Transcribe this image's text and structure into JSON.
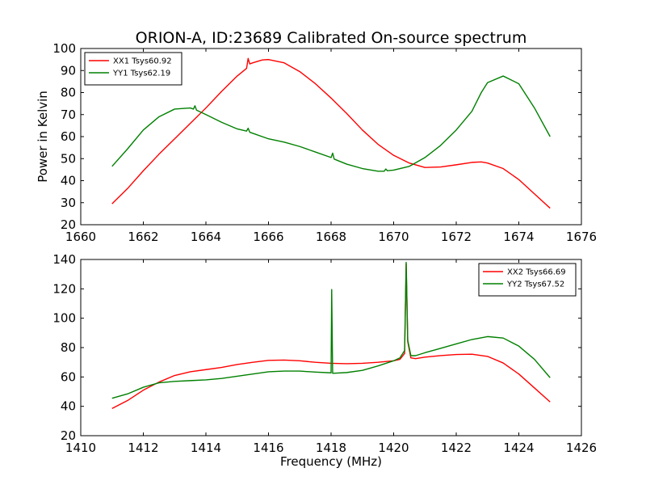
{
  "chart_data": [
    {
      "type": "line",
      "title": "ORION-A, ID:23689 Calibrated On-source spectrum",
      "xlabel": "",
      "ylabel": "Power in Kelvin",
      "xlim": [
        1660,
        1676
      ],
      "ylim": [
        20,
        100
      ],
      "xticks": [
        "1660",
        "1662",
        "1664",
        "1666",
        "1668",
        "1670",
        "1672",
        "1674",
        "1676"
      ],
      "yticks": [
        "20",
        "30",
        "40",
        "50",
        "60",
        "70",
        "80",
        "90",
        "100"
      ],
      "grid": false,
      "legend_position": "top-left",
      "series": [
        {
          "name": "XX1 Tsys60.92",
          "color": "#ff0000",
          "x": [
            1661.0,
            1661.5,
            1662.0,
            1662.5,
            1663.0,
            1663.5,
            1664.0,
            1664.5,
            1665.0,
            1665.3,
            1665.35,
            1665.4,
            1665.5,
            1665.8,
            1666.0,
            1666.5,
            1667.0,
            1667.5,
            1668.0,
            1668.5,
            1669.0,
            1669.5,
            1670.0,
            1670.5,
            1671.0,
            1671.5,
            1672.0,
            1672.5,
            1672.8,
            1673.0,
            1673.5,
            1674.0,
            1674.5,
            1675.0
          ],
          "values": [
            29.5,
            36.5,
            44.5,
            52.0,
            59.0,
            66.0,
            73.0,
            80.5,
            87.5,
            91.0,
            95.5,
            93.0,
            93.5,
            94.8,
            95.0,
            93.5,
            89.5,
            84.0,
            77.5,
            70.5,
            63.0,
            56.5,
            51.5,
            48.0,
            46.0,
            46.2,
            47.2,
            48.3,
            48.5,
            48.0,
            45.5,
            40.5,
            34.0,
            27.5
          ]
        },
        {
          "name": "YY1 Tsys62.19",
          "color": "#008000",
          "x": [
            1661.0,
            1661.5,
            1662.0,
            1662.5,
            1663.0,
            1663.5,
            1663.6,
            1663.65,
            1663.7,
            1664.0,
            1664.5,
            1665.0,
            1665.3,
            1665.35,
            1665.4,
            1665.5,
            1666.0,
            1666.5,
            1667.0,
            1667.5,
            1668.0,
            1668.05,
            1668.1,
            1668.5,
            1669.0,
            1669.5,
            1669.7,
            1669.75,
            1669.8,
            1670.0,
            1670.5,
            1671.0,
            1671.5,
            1672.0,
            1672.5,
            1672.8,
            1673.0,
            1673.5,
            1674.0,
            1674.5,
            1675.0
          ],
          "values": [
            46.5,
            54.5,
            63.0,
            69.0,
            72.5,
            73.0,
            72.5,
            74.0,
            72.0,
            70.0,
            66.5,
            63.5,
            62.5,
            63.8,
            62.0,
            61.5,
            59.0,
            57.5,
            55.5,
            53.0,
            50.5,
            52.5,
            49.8,
            47.5,
            45.5,
            44.3,
            44.3,
            45.3,
            44.5,
            44.8,
            46.5,
            50.5,
            56.0,
            63.0,
            71.5,
            80.0,
            84.5,
            87.5,
            84.0,
            73.0,
            60.0
          ]
        }
      ]
    },
    {
      "type": "line",
      "title": "",
      "xlabel": "Frequency (MHz)",
      "ylabel": "",
      "xlim": [
        1410,
        1426
      ],
      "ylim": [
        20,
        140
      ],
      "xticks": [
        "1410",
        "1412",
        "1414",
        "1416",
        "1418",
        "1420",
        "1422",
        "1424",
        "1426"
      ],
      "yticks": [
        "20",
        "40",
        "60",
        "80",
        "100",
        "120",
        "140"
      ],
      "grid": false,
      "legend_position": "top-right",
      "series": [
        {
          "name": "XX2 Tsys66.69",
          "color": "#ff0000",
          "x": [
            1411.0,
            1411.5,
            1412.0,
            1412.5,
            1413.0,
            1413.5,
            1414.0,
            1414.5,
            1415.0,
            1415.5,
            1416.0,
            1416.5,
            1417.0,
            1417.5,
            1418.0,
            1418.5,
            1419.0,
            1419.5,
            1420.0,
            1420.2,
            1420.35,
            1420.4,
            1420.45,
            1420.55,
            1420.7,
            1421.0,
            1421.5,
            1422.0,
            1422.5,
            1423.0,
            1423.5,
            1424.0,
            1424.5,
            1425.0
          ],
          "values": [
            38.5,
            44.0,
            51.0,
            56.5,
            61.0,
            63.5,
            65.0,
            66.5,
            68.5,
            70.0,
            71.3,
            71.5,
            71.0,
            70.0,
            69.3,
            69.0,
            69.3,
            70.0,
            71.0,
            72.0,
            76.0,
            137.0,
            84.0,
            73.0,
            72.5,
            73.5,
            74.5,
            75.3,
            75.5,
            74.0,
            69.5,
            62.0,
            52.5,
            43.0
          ]
        },
        {
          "name": "YY2 Tsys67.52",
          "color": "#008000",
          "x": [
            1411.0,
            1411.5,
            1412.0,
            1412.5,
            1413.0,
            1413.5,
            1414.0,
            1414.5,
            1415.0,
            1415.5,
            1416.0,
            1416.5,
            1417.0,
            1417.5,
            1418.0,
            1418.02,
            1418.05,
            1418.5,
            1419.0,
            1419.5,
            1420.0,
            1420.2,
            1420.35,
            1420.4,
            1420.45,
            1420.55,
            1420.7,
            1421.0,
            1421.5,
            1422.0,
            1422.5,
            1423.0,
            1423.5,
            1424.0,
            1424.5,
            1425.0
          ],
          "values": [
            45.5,
            48.5,
            53.0,
            56.0,
            57.0,
            57.5,
            58.0,
            59.0,
            60.5,
            62.0,
            63.5,
            64.0,
            64.0,
            63.3,
            62.8,
            119.5,
            62.5,
            63.0,
            64.5,
            67.5,
            71.0,
            73.0,
            78.0,
            138.0,
            85.0,
            74.5,
            74.5,
            76.5,
            79.5,
            82.5,
            85.5,
            87.5,
            86.5,
            81.0,
            72.0,
            59.5
          ]
        }
      ]
    }
  ]
}
